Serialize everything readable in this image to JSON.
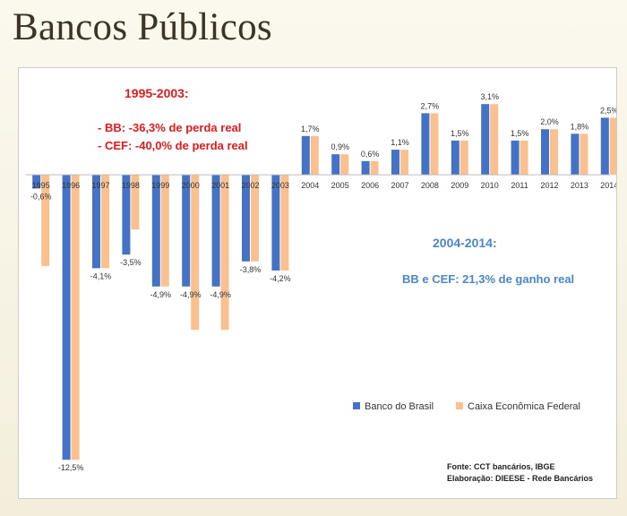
{
  "slide": {
    "title": "Bancos Públicos"
  },
  "chart_data": {
    "type": "bar",
    "categories": [
      "1995",
      "1996",
      "1997",
      "1998",
      "1999",
      "2000",
      "2001",
      "2002",
      "2003",
      "2004",
      "2005",
      "2006",
      "2007",
      "2008",
      "2009",
      "2010",
      "2011",
      "2012",
      "2013",
      "2014"
    ],
    "series": [
      {
        "name": "Banco do Brasil",
        "color": "#4472c4",
        "values": [
          -0.6,
          -12.5,
          -4.1,
          -3.5,
          -4.9,
          -4.9,
          -4.9,
          -3.8,
          -4.2,
          1.7,
          0.9,
          0.6,
          1.1,
          2.7,
          1.5,
          3.1,
          1.5,
          2.0,
          1.8,
          2.5
        ]
      },
      {
        "name": "Caixa Econômica Federal",
        "color": "#fac090",
        "values": [
          -4.0,
          -12.5,
          -4.1,
          -2.4,
          -4.9,
          -6.8,
          -6.8,
          -3.8,
          -4.2,
          1.7,
          0.9,
          0.6,
          1.1,
          2.7,
          1.5,
          3.1,
          1.5,
          2.0,
          1.8,
          2.5
        ]
      }
    ],
    "data_labels": [
      "-0,6%",
      "-12,5%",
      "-4,1%",
      "-3,5%",
      "-4,9%",
      "-4,9%",
      "-4,9%",
      "-3,8%",
      "-4,2%",
      "1,7%",
      "0,9%",
      "0,6%",
      "1,1%",
      "2,7%",
      "1,5%",
      "3,1%",
      "1,5%",
      "2,0%",
      "1,8%",
      "2,5%"
    ],
    "ylim": [
      -13.2,
      3.5
    ],
    "legend_position": "bottom-right",
    "grid": false
  },
  "annotations": {
    "period1_title": "1995-2003:",
    "period1_bb": "- BB:  -36,3% de perda real",
    "period1_cef": "- CEF: -40,0% de perda real",
    "period2_title": "2004-2014:",
    "period2_text": "BB e CEF: 21,3% de ganho real",
    "period1_color": "#e31a1c",
    "period2_color": "#4a86c8"
  },
  "source": {
    "fonte": "Fonte: CCT bancários, IBGE",
    "elaboracao": "Elaboração: DIEESE - Rede Bancários"
  }
}
